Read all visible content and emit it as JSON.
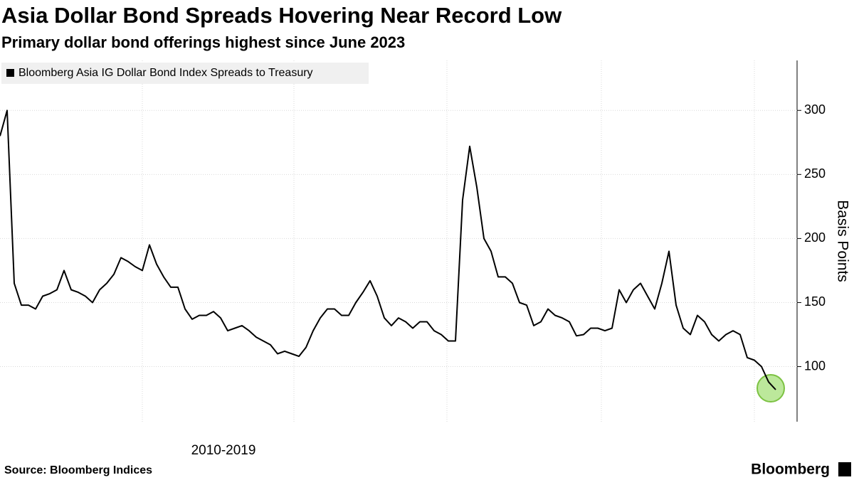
{
  "chart_data": {
    "type": "line",
    "title": "Asia Dollar Bond Spreads Hovering Near Record Low",
    "subtitle": "Primary dollar bond offerings highest since June 2023",
    "x_label": "2010-2019",
    "y_label": "Basis Points",
    "source": "Source: Bloomberg Indices",
    "brand": "Bloomberg",
    "series": [
      {
        "name": "Bloomberg Asia IG Dollar Bond Index Spreads to Treasury",
        "color": "#000000",
        "values": [
          280,
          300,
          165,
          148,
          148,
          145,
          155,
          157,
          160,
          175,
          160,
          158,
          155,
          150,
          160,
          165,
          172,
          185,
          182,
          178,
          175,
          195,
          180,
          170,
          162,
          162,
          145,
          137,
          140,
          140,
          143,
          138,
          128,
          130,
          132,
          128,
          123,
          120,
          117,
          110,
          112,
          110,
          108,
          115,
          128,
          138,
          145,
          145,
          140,
          140,
          150,
          158,
          167,
          155,
          138,
          132,
          138,
          135,
          130,
          135,
          135,
          128,
          125,
          120,
          120,
          230,
          272,
          240,
          200,
          190,
          170,
          170,
          165,
          150,
          148,
          132,
          135,
          145,
          140,
          138,
          135,
          124,
          125,
          130,
          130,
          128,
          130,
          160,
          150,
          160,
          165,
          155,
          145,
          165,
          190,
          148,
          130,
          125,
          140,
          135,
          125,
          120,
          125,
          128,
          125,
          107,
          105,
          100,
          88,
          82
        ]
      }
    ],
    "ylim": [
      57,
      339
    ],
    "yticks": [
      100,
      150,
      200,
      250,
      300
    ],
    "grid": true
  }
}
